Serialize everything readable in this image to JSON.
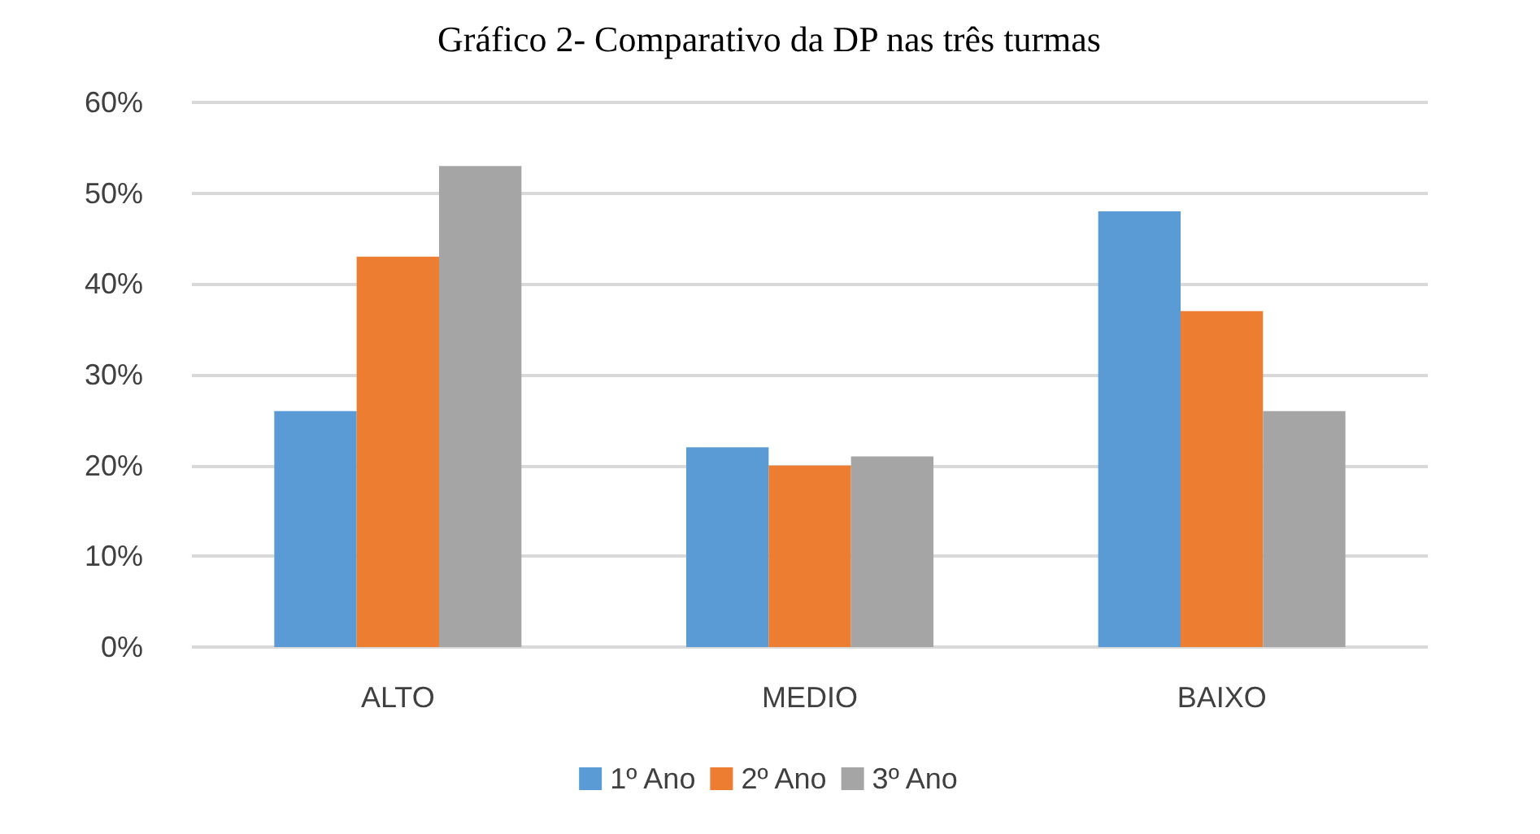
{
  "chart_data": {
    "type": "bar",
    "title": "Gráfico 2- Comparativo da DP nas três turmas",
    "categories": [
      "ALTO",
      "MEDIO",
      "BAIXO"
    ],
    "series": [
      {
        "name": "1º Ano",
        "color": "#5b9bd5",
        "values": [
          26,
          22,
          48
        ]
      },
      {
        "name": "2º Ano",
        "color": "#ed7d31",
        "values": [
          43,
          20,
          37
        ]
      },
      {
        "name": "3º Ano",
        "color": "#a5a5a5",
        "values": [
          53,
          21,
          26
        ]
      }
    ],
    "ylim": [
      0,
      60
    ],
    "yticks": [
      {
        "value": 0,
        "label": "0%"
      },
      {
        "value": 10,
        "label": "10%"
      },
      {
        "value": 20,
        "label": "20%"
      },
      {
        "value": 30,
        "label": "30%"
      },
      {
        "value": 40,
        "label": "40%"
      },
      {
        "value": 50,
        "label": "50%"
      },
      {
        "value": 60,
        "label": "60%"
      }
    ],
    "grid": "y",
    "legend": "bottom"
  }
}
